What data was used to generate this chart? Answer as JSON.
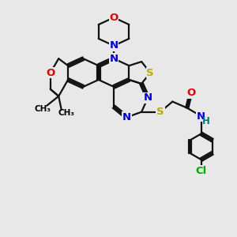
{
  "background_color": "#e8e8e8",
  "atom_colors": {
    "C": "#000000",
    "N": "#0000cc",
    "O": "#dd0000",
    "S": "#bbaa00",
    "Cl": "#00aa00",
    "H": "#007777"
  },
  "bond_color": "#111111",
  "bond_width": 1.6,
  "font_size": 9.5,
  "fig_width": 3.0,
  "fig_height": 3.0,
  "dpi": 100
}
